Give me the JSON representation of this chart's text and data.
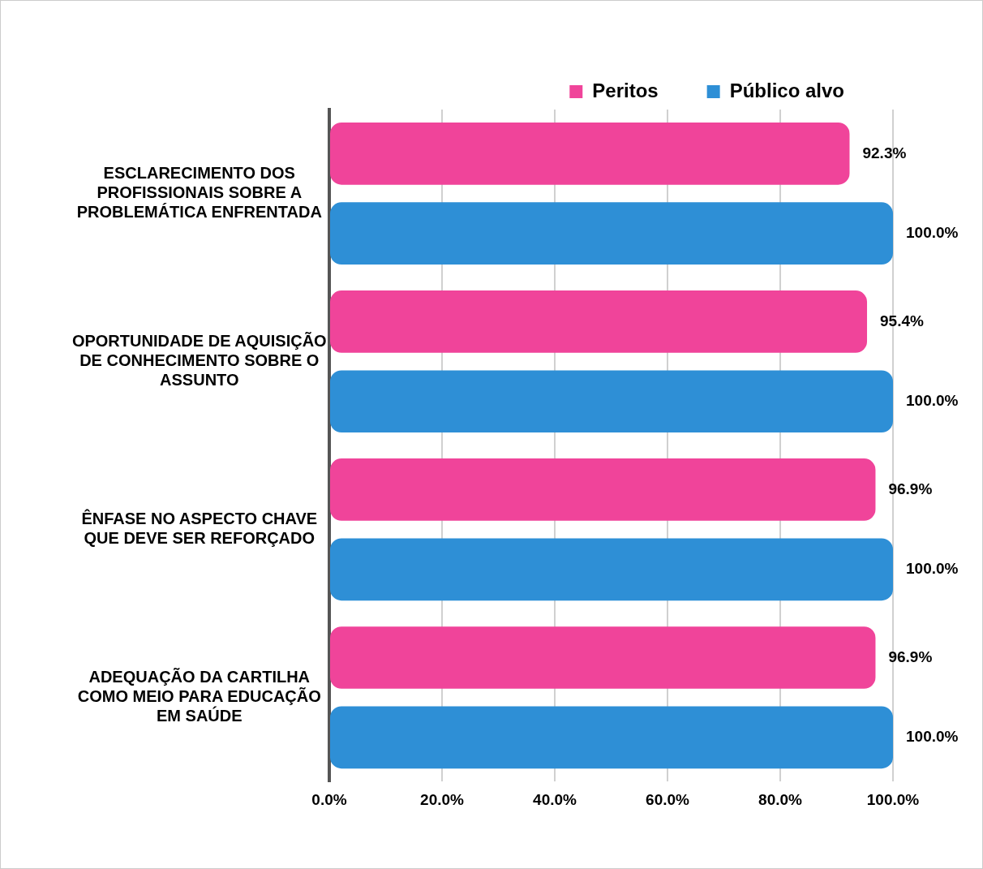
{
  "chart_data": {
    "type": "bar",
    "orientation": "horizontal",
    "categories": [
      "ESCLARECIMENTO DOS PROFISSIONAIS SOBRE A PROBLEMÁTICA ENFRENTADA",
      "OPORTUNIDADE DE AQUISIÇÃO DE CONHECIMENTO SOBRE O ASSUNTO",
      "ÊNFASE NO ASPECTO CHAVE QUE DEVE SER REFORÇADO",
      "ADEQUAÇÃO DA CARTILHA COMO MEIO PARA EDUCAÇÃO EM SAÚDE"
    ],
    "series": [
      {
        "name": "Peritos",
        "color": "#f0449a",
        "values": [
          92.3,
          95.4,
          96.9,
          96.9
        ],
        "value_labels": [
          "92.3%",
          "95.4%",
          "96.9%",
          "96.9%"
        ]
      },
      {
        "name": "Público alvo",
        "color": "#2e8fd6",
        "values": [
          100,
          100,
          100,
          100
        ],
        "value_labels": [
          "100.0%",
          "100.0%",
          "100.0%",
          "100.0%"
        ]
      }
    ],
    "xlim": [
      0,
      100
    ],
    "xticks": [
      {
        "value": 0,
        "label": "0.0%"
      },
      {
        "value": 20,
        "label": "20.0%"
      },
      {
        "value": 40,
        "label": "40.0%"
      },
      {
        "value": 60,
        "label": "60.0%"
      },
      {
        "value": 80,
        "label": "80.0%"
      },
      {
        "value": 100,
        "label": "100.0%"
      }
    ],
    "grid": "x",
    "legend": "top right"
  }
}
